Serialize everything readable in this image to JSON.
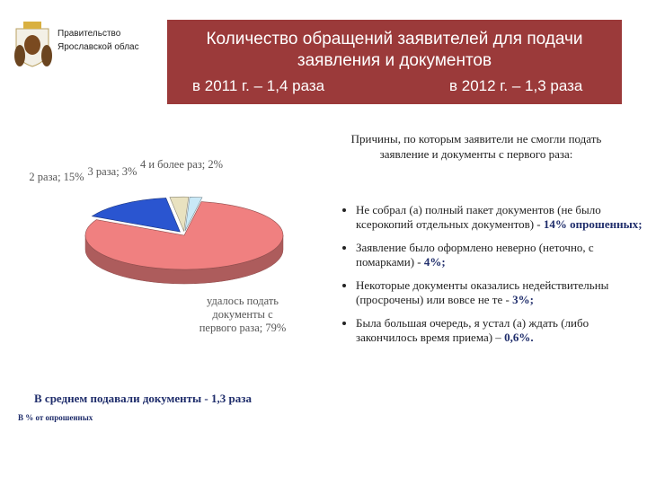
{
  "header": {
    "org": [
      "Правительство",
      "Ярославской облас"
    ],
    "title": "Количество обращений заявителей для подачи заявления и документов",
    "year_2011": "в 2011 г. – 1,4 раза",
    "year_2012": "в 2012 г. – 1,3 раза"
  },
  "chart_data": {
    "type": "pie",
    "categories": [
      "удалось подать документы с первого раза;",
      "2 раза;",
      "3 раза;",
      "4 и более раз;"
    ],
    "values": [
      79,
      15,
      3,
      2
    ],
    "value_labels": [
      "79%",
      "15%",
      "3%",
      "2%"
    ],
    "colors": [
      "#f08080",
      "#2a55d0",
      "#e9e2c0",
      "#c9e9f7"
    ],
    "footnote": "В среднем подавали документы - 1,3 раза",
    "unit_note": "В % от опрошенных"
  },
  "reasons": {
    "heading": "Причины, по которым заявители не смогли подать заявление и документы с первого раза:",
    "items": [
      {
        "text": "Не собрал (а) полный пакет документов (не было ксерокопий отдельных документов) -",
        "emph": "14% опрошенных;"
      },
      {
        "text": "Заявление было оформлено неверно (неточно, с помарками) -",
        "emph": "4%;"
      },
      {
        "text": "Некоторые документы оказались недействительны (просрочены) или вовсе не те -",
        "emph": "3%;"
      },
      {
        "text": "Была большая очередь, я устал (а) ждать (либо закончилось время приема) –",
        "emph": "0,6%."
      }
    ]
  }
}
